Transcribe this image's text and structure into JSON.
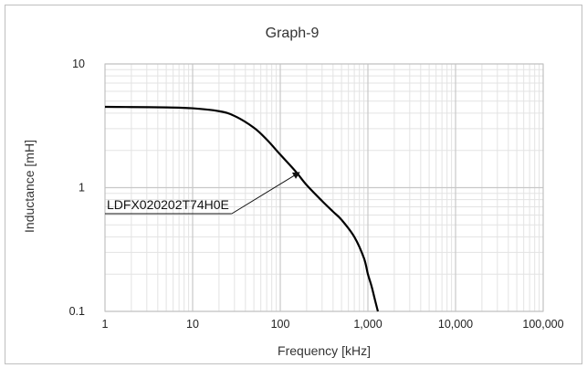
{
  "chart_data": {
    "type": "line",
    "title": "Graph-9",
    "xlabel": "Frequency [kHz]",
    "ylabel": "Inductance [mH]",
    "x_scale": "log",
    "y_scale": "log",
    "xlim": [
      1,
      100000
    ],
    "ylim": [
      0.1,
      10
    ],
    "x_ticks": [
      1,
      10,
      100,
      1000,
      10000,
      100000
    ],
    "x_tick_labels": [
      "1",
      "10",
      "100",
      "1,000",
      "10,000",
      "100,000"
    ],
    "y_ticks": [
      0.1,
      1,
      10
    ],
    "y_tick_labels": [
      "0.1",
      "1",
      "10"
    ],
    "grid": "major and minor",
    "series": [
      {
        "name": "LDFX020202T74H0E",
        "color": "#000000",
        "x": [
          1,
          2,
          5,
          10,
          20,
          30,
          50,
          70,
          100,
          150,
          200,
          300,
          400,
          500,
          700,
          900,
          1000,
          1100,
          1200,
          1300
        ],
        "y": [
          4.5,
          4.48,
          4.45,
          4.38,
          4.15,
          3.8,
          3.05,
          2.45,
          1.85,
          1.35,
          1.05,
          0.78,
          0.64,
          0.55,
          0.4,
          0.27,
          0.2,
          0.16,
          0.125,
          0.1
        ]
      }
    ],
    "annotations": [
      {
        "text": "LDFX020202T74H0E",
        "points_to": {
          "x": 150,
          "y": 1.35
        }
      }
    ]
  }
}
